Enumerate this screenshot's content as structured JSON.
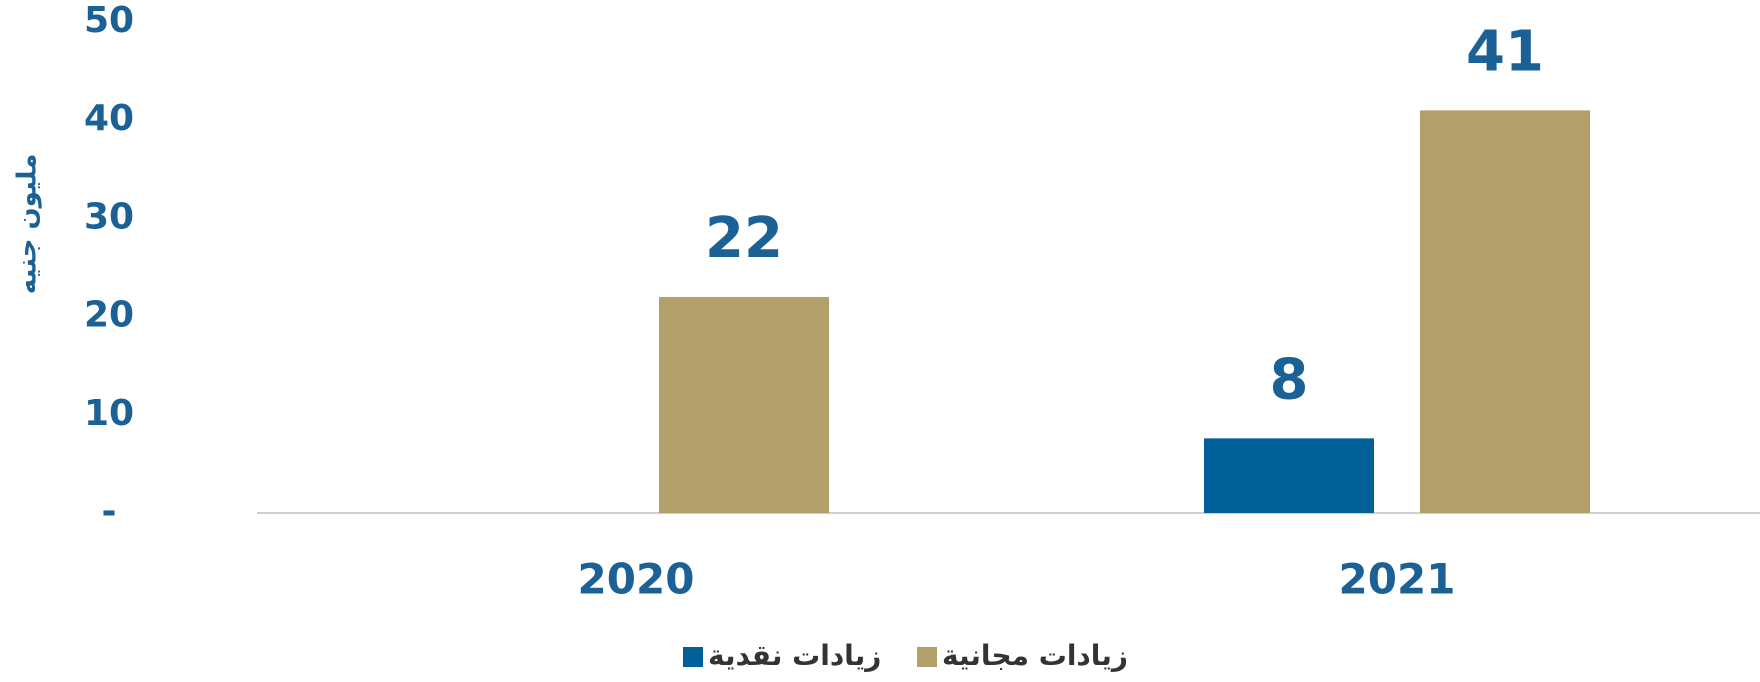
{
  "chart_data": {
    "type": "bar",
    "y_label": "مليون جنيه",
    "categories": [
      "2020",
      "2021"
    ],
    "series": [
      {
        "name": "زيادات نقدية",
        "color": "#006098",
        "values": [
          null,
          7.6
        ],
        "value_labels": [
          null,
          "8"
        ]
      },
      {
        "name": "زيادات مجانية",
        "color": "#b29f6a",
        "values": [
          22,
          41
        ],
        "value_labels": [
          "22",
          "41"
        ]
      }
    ],
    "ylim": [
      0,
      50
    ],
    "yticks": [
      {
        "value": 0,
        "label": "-"
      },
      10,
      20,
      30,
      40,
      50
    ],
    "grid": false
  }
}
